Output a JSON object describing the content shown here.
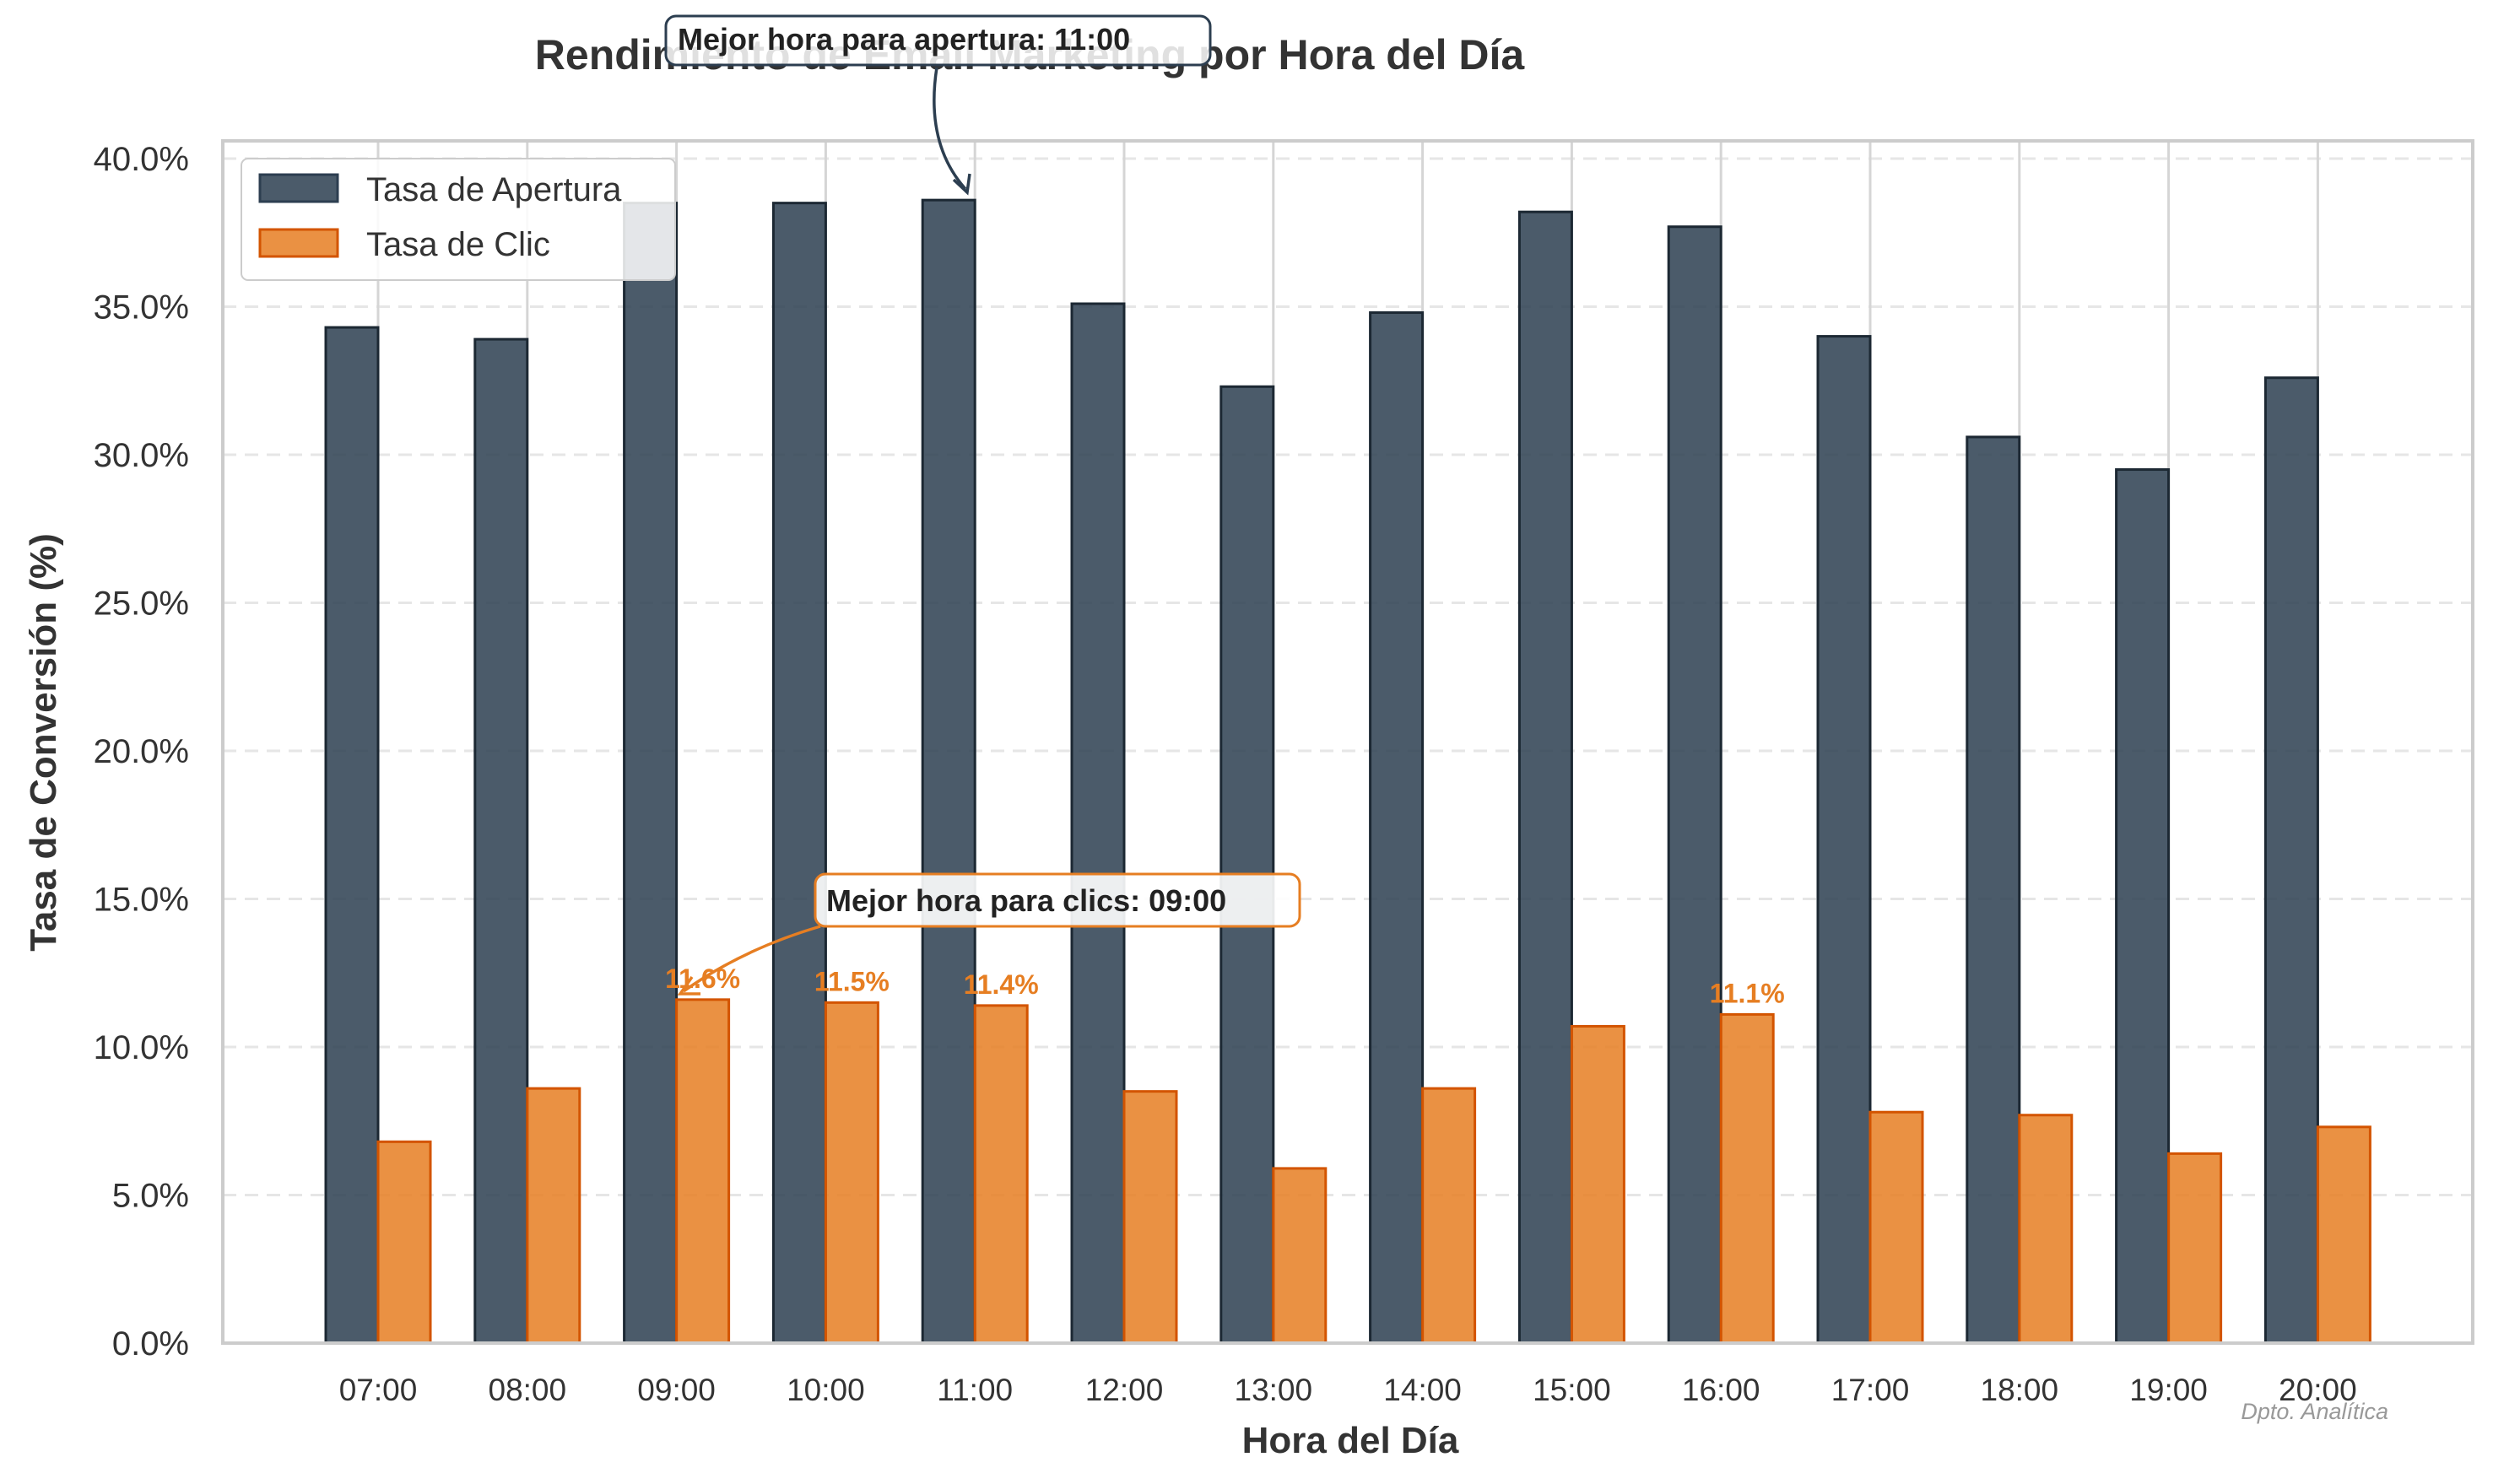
{
  "chart_data": {
    "type": "bar",
    "title": "Rendimiento de Email Marketing por Hora del Día",
    "xlabel": "Hora del Día",
    "ylabel": "Tasa de Conversión (%)",
    "ylim": [
      0,
      40
    ],
    "yticks": [
      "0.0%",
      "5.0%",
      "10.0%",
      "15.0%",
      "20.0%",
      "25.0%",
      "30.0%",
      "35.0%",
      "40.0%"
    ],
    "categories": [
      "07:00",
      "08:00",
      "09:00",
      "10:00",
      "11:00",
      "12:00",
      "13:00",
      "14:00",
      "15:00",
      "16:00",
      "17:00",
      "18:00",
      "19:00",
      "20:00"
    ],
    "series": [
      {
        "name": "Tasa de Apertura",
        "color": "#2c3e50",
        "values": [
          34.3,
          33.9,
          38.5,
          38.5,
          38.6,
          35.1,
          32.3,
          34.8,
          38.2,
          37.7,
          34.0,
          30.6,
          29.5,
          32.6
        ]
      },
      {
        "name": "Tasa de Clic",
        "color": "#e67e22",
        "values": [
          6.8,
          8.6,
          11.6,
          11.5,
          11.4,
          8.5,
          5.9,
          8.6,
          10.7,
          11.1,
          7.8,
          7.7,
          6.4,
          7.3
        ]
      }
    ],
    "data_labels": [
      {
        "series": 1,
        "index": 2,
        "text": "11.6%"
      },
      {
        "series": 1,
        "index": 3,
        "text": "11.5%"
      },
      {
        "series": 1,
        "index": 4,
        "text": "11.4%"
      },
      {
        "series": 1,
        "index": 9,
        "text": "11.1%"
      }
    ],
    "annotations": [
      {
        "text": "Mejor hora para apertura: 11:00",
        "series": 0,
        "index": 4
      },
      {
        "text": "Mejor hora para clics: 09:00",
        "series": 1,
        "index": 2
      }
    ],
    "watermark": "Dpto. Analítica",
    "legend_position": "top-left",
    "grid": true
  }
}
